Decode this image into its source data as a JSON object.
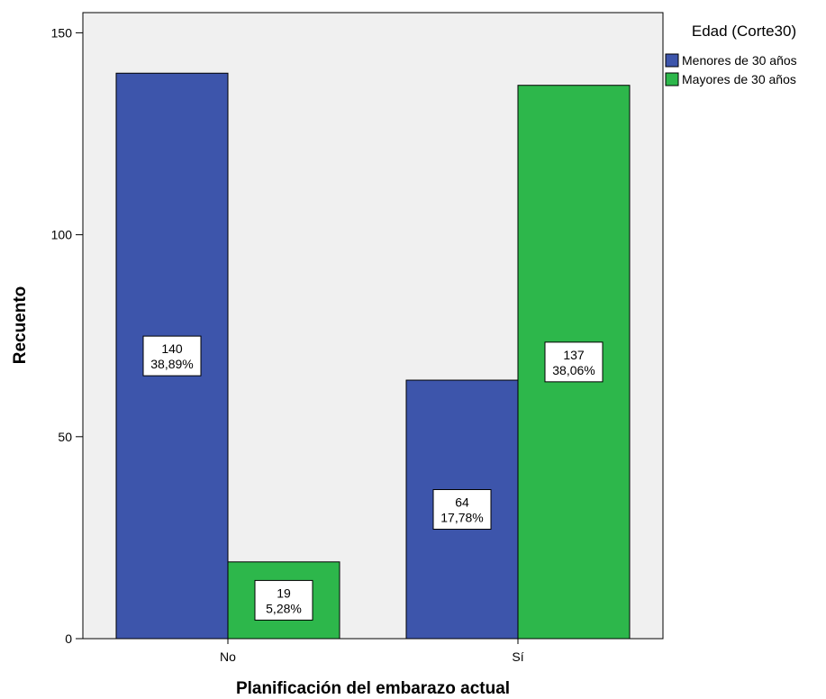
{
  "colors": {
    "plot_background": "#f0f0f0",
    "series_1": "#3d55ab",
    "series_2": "#2db74b",
    "axis": "#000000"
  },
  "chart_data": {
    "type": "bar",
    "title": "",
    "xlabel": "Planificación del embarazo actual",
    "ylabel": "Recuento",
    "categories": [
      "No",
      "Sí"
    ],
    "ylim": [
      0,
      155
    ],
    "yticks": [
      0,
      50,
      100,
      150
    ],
    "grid": false,
    "legend": {
      "title": "Edad (Corte30)",
      "placement": "top-right, outside plot"
    },
    "series": [
      {
        "name": "Menores de 30 años",
        "color": "#3d55ab",
        "values": [
          140,
          64
        ],
        "labels": [
          [
            "140",
            "38,89%"
          ],
          [
            "64",
            "17,78%"
          ]
        ]
      },
      {
        "name": "Mayores de 30 años",
        "color": "#2db74b",
        "values": [
          19,
          137
        ],
        "labels": [
          [
            "19",
            "5,28%"
          ],
          [
            "137",
            "38,06%"
          ]
        ]
      }
    ]
  }
}
